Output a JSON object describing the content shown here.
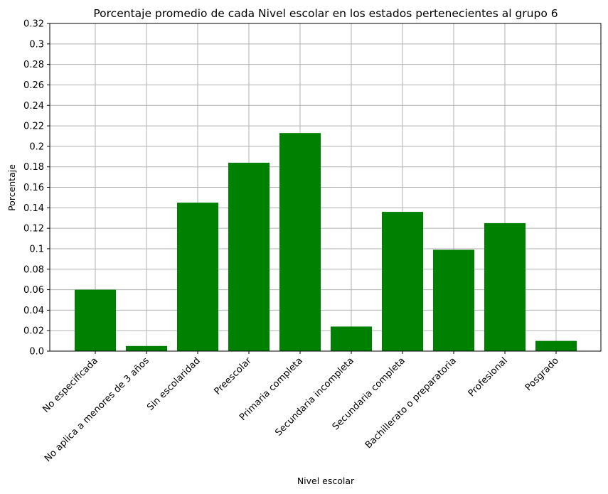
{
  "chart_data": {
    "type": "bar",
    "title": "Porcentaje promedio de cada Nivel escolar en los estados pertenecientes al grupo 6",
    "xlabel": "Nivel escolar",
    "ylabel": "Porcentaje",
    "categories": [
      "No especificada",
      "No aplica a menores de 3 años",
      "Sin escolaridad",
      "Preescolar",
      "Primaria completa",
      "Secundaria incompleta",
      "Secundaria completa",
      "Bachillerato o preparatoria",
      "Profesional",
      "Posgrado"
    ],
    "values": [
      0.06,
      0.005,
      0.145,
      0.184,
      0.213,
      0.024,
      0.136,
      0.099,
      0.125,
      0.01
    ],
    "ylim": [
      0,
      0.32
    ],
    "yticks": [
      "0.0",
      "0.02",
      "0.04",
      "0.06",
      "0.08",
      "0.1",
      "0.12",
      "0.14",
      "0.16",
      "0.18",
      "0.2",
      "0.22",
      "0.24",
      "0.26",
      "0.28",
      "0.3",
      "0.32"
    ],
    "bar_color": "#008000",
    "grid": true
  }
}
